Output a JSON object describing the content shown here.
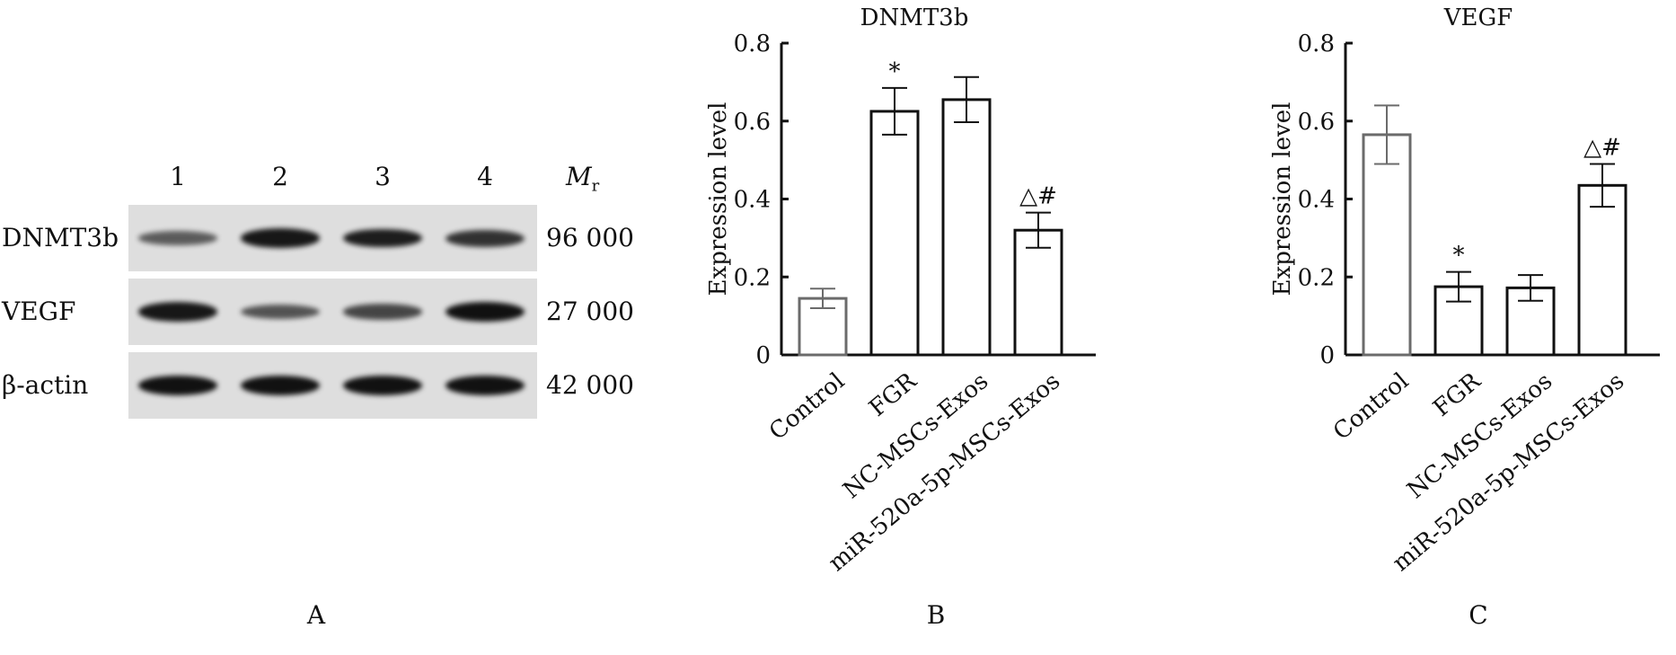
{
  "panel_labels": {
    "a": "A",
    "b": "B",
    "c": "C"
  },
  "western_blot": {
    "lanes": [
      "1",
      "2",
      "3",
      "4"
    ],
    "mr_header": "M",
    "mr_header_sub": "r",
    "rows": [
      {
        "protein": "DNMT3b",
        "mr": "96 000",
        "band_intensity": [
          0.45,
          0.95,
          0.9,
          0.75
        ]
      },
      {
        "protein": "VEGF",
        "mr": "27 000",
        "band_intensity": [
          0.95,
          0.5,
          0.6,
          1.0
        ]
      },
      {
        "protein": "β-actin",
        "mr": "42 000",
        "band_intensity": [
          1.0,
          1.0,
          1.0,
          1.0
        ]
      }
    ]
  },
  "chart_data": [
    {
      "type": "bar",
      "title": "DNMT3b",
      "ylabel": "Expression level",
      "xlabel": "",
      "ylim": [
        0,
        0.8
      ],
      "yticks": [
        "0",
        "0.2",
        "0.4",
        "0.6",
        "0.8"
      ],
      "categories": [
        "Control",
        "FGR",
        "NC-MSCs-Exos",
        "miR-520a-5p-MSCs-Exos"
      ],
      "values": [
        0.145,
        0.625,
        0.655,
        0.32
      ],
      "errors": [
        0.025,
        0.06,
        0.058,
        0.045
      ],
      "annotations": [
        "",
        "*",
        "",
        "△#"
      ]
    },
    {
      "type": "bar",
      "title": "VEGF",
      "ylabel": "Expression level",
      "xlabel": "",
      "ylim": [
        0,
        0.8
      ],
      "yticks": [
        "0",
        "0.2",
        "0.4",
        "0.6",
        "0.8"
      ],
      "categories": [
        "Control",
        "FGR",
        "NC-MSCs-Exos",
        "miR-520a-5p-MSCs-Exos"
      ],
      "values": [
        0.565,
        0.175,
        0.172,
        0.435
      ],
      "errors": [
        0.075,
        0.038,
        0.033,
        0.055
      ],
      "annotations": [
        "",
        "*",
        "",
        "△#"
      ]
    }
  ]
}
